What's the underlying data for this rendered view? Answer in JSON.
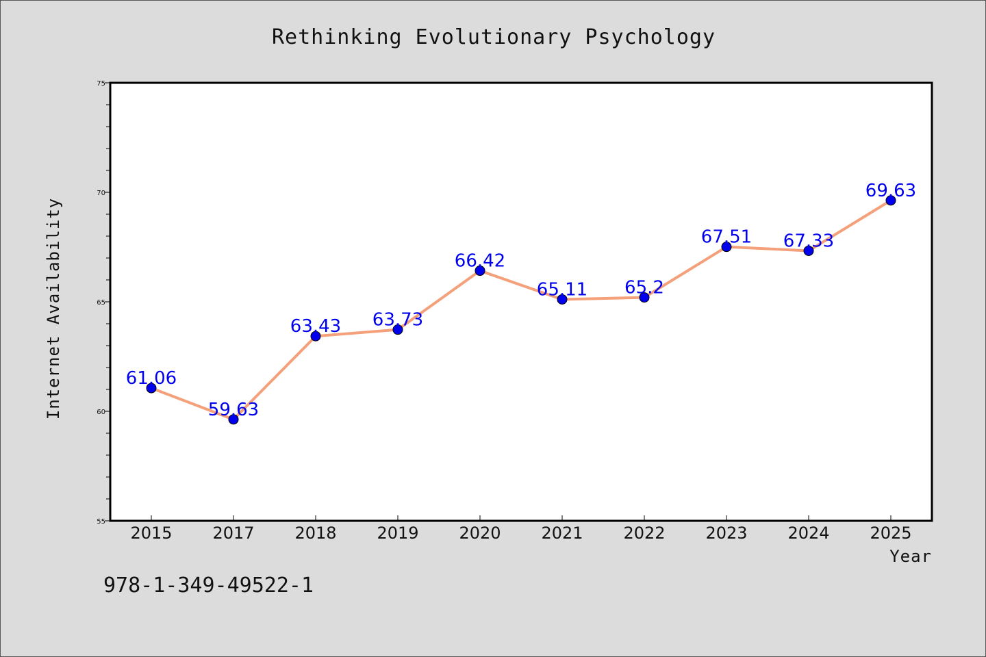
{
  "colors": {
    "background": "#dcdcdc",
    "plot_background": "#ffffff",
    "line": "#f4a07a",
    "marker": "#0000ee",
    "label": "#0000ee"
  },
  "isbn": "978-1-349-49522-1",
  "chart_data": {
    "type": "line",
    "title": "Rethinking Evolutionary Psychology",
    "xlabel": "Year",
    "ylabel": "Internet Availability",
    "categories": [
      "2015",
      "2017",
      "2018",
      "2019",
      "2020",
      "2021",
      "2022",
      "2023",
      "2024",
      "2025"
    ],
    "ylim": [
      55,
      75
    ],
    "yticks": [
      "55",
      "60",
      "65",
      "70",
      "75"
    ],
    "grid": false,
    "series": [
      {
        "values": [
          61.06,
          59.63,
          63.43,
          63.73,
          66.42,
          65.11,
          65.2,
          67.51,
          67.33,
          69.63
        ],
        "labels": [
          "61.06",
          "59.63",
          "63.43",
          "63.73",
          "66.42",
          "65.11",
          "65.2",
          "67.51",
          "67.33",
          "69.63"
        ]
      }
    ]
  }
}
